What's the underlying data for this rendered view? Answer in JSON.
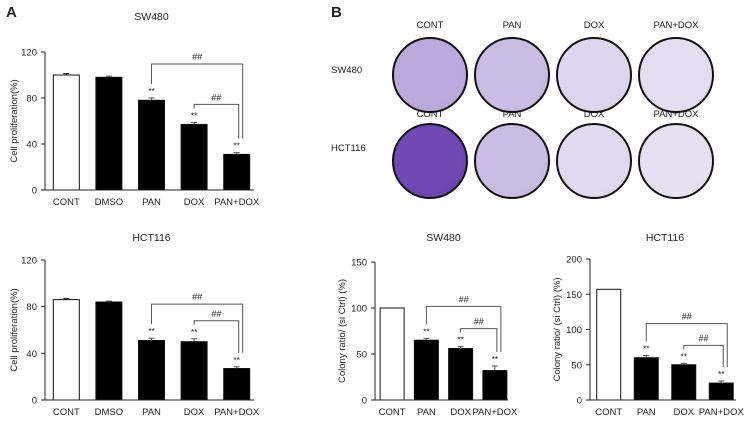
{
  "panel_labels": {
    "a": "A",
    "b": "B"
  },
  "colony_plates": {
    "columns": [
      "CONT",
      "PAN",
      "DOX",
      "PAN+DOX"
    ],
    "second_row_columns": [
      "CONT",
      "PAN",
      "DOX",
      "PAN+DOX"
    ],
    "rows": [
      "SW480",
      "HCT116"
    ],
    "stain_intensity": [
      [
        0.45,
        0.35,
        0.22,
        0.18
      ],
      [
        0.95,
        0.35,
        0.2,
        0.16
      ]
    ],
    "stain_color": "#6a3fb0"
  },
  "colors": {
    "control_fill": "#ffffff",
    "treated_fill": "#000000",
    "bracket": "#555555",
    "axis": "#222222"
  },
  "chart_data": [
    {
      "type": "bar",
      "title": "SW480",
      "ylabel": "Cell proliferation(%)",
      "xlabel": "",
      "ylim": [
        0,
        120
      ],
      "yticks": [
        0,
        40,
        80,
        120
      ],
      "yticklabels": [
        "0",
        "40",
        "80",
        "120"
      ],
      "categories": [
        "CONT",
        "DMSO",
        "PAN",
        "DOX",
        "PAN+DOX"
      ],
      "values": [
        100,
        98,
        78,
        57,
        31
      ],
      "errors": [
        1.2,
        1,
        2,
        1.8,
        1.5
      ],
      "fills": [
        "white",
        "black",
        "black",
        "black",
        "black"
      ],
      "significance": [
        "",
        "",
        "**",
        "**",
        "**"
      ],
      "brackets": [
        {
          "from": 2,
          "to": 4,
          "label": "##"
        },
        {
          "from": 3,
          "to": 4,
          "label": "##"
        }
      ]
    },
    {
      "type": "bar",
      "title": "HCT116",
      "ylabel": "Cell proliferation(%)",
      "xlabel": "",
      "ylim": [
        0,
        120
      ],
      "yticks": [
        0,
        40,
        80,
        120
      ],
      "yticklabels": [
        "0",
        "40",
        "80",
        "120"
      ],
      "categories": [
        "CONT",
        "DMSO",
        "PAN",
        "DOX",
        "PAN+DOX"
      ],
      "values": [
        86,
        84,
        51,
        50,
        27
      ],
      "errors": [
        1,
        0.8,
        2,
        2.5,
        1.5
      ],
      "fills": [
        "white",
        "black",
        "black",
        "black",
        "black"
      ],
      "significance": [
        "",
        "",
        "**",
        "**",
        "**"
      ],
      "brackets": [
        {
          "from": 2,
          "to": 4,
          "label": "##"
        },
        {
          "from": 3,
          "to": 4,
          "label": "##"
        }
      ]
    },
    {
      "type": "bar",
      "title": "SW480",
      "ylabel": "Colony ratio/ (si Ctrl) (%)",
      "xlabel": "",
      "ylim": [
        0,
        150
      ],
      "yticks": [
        0,
        50,
        100,
        150
      ],
      "yticklabels": [
        "0",
        "50",
        "100",
        "150"
      ],
      "categories": [
        "CONT",
        "PAN",
        "DOX",
        "PAN+DOX"
      ],
      "values": [
        100,
        65,
        56,
        32
      ],
      "errors": [
        0,
        2,
        2,
        5
      ],
      "fills": [
        "white",
        "black",
        "black",
        "black"
      ],
      "significance": [
        "",
        "**",
        "**",
        "**"
      ],
      "brackets": [
        {
          "from": 1,
          "to": 3,
          "label": "##"
        },
        {
          "from": 2,
          "to": 3,
          "label": "##"
        }
      ]
    },
    {
      "type": "bar",
      "title": "HCT116",
      "ylabel": "Colony ratio/ (si Ctrl) (%)",
      "xlabel": "",
      "ylim": [
        0,
        200
      ],
      "yticks": [
        0,
        50,
        100,
        150,
        200
      ],
      "yticklabels": [
        "0",
        "50",
        "100",
        "150",
        "200"
      ],
      "categories": [
        "CONT",
        "PAN",
        "DOX",
        "PAN+DOX"
      ],
      "values": [
        157,
        60,
        50,
        24
      ],
      "errors": [
        0,
        3,
        2,
        3
      ],
      "fills": [
        "white",
        "black",
        "black",
        "black"
      ],
      "significance": [
        "",
        "**",
        "**",
        "**"
      ],
      "brackets": [
        {
          "from": 1,
          "to": 3,
          "label": "##"
        },
        {
          "from": 2,
          "to": 3,
          "label": "##"
        }
      ]
    }
  ]
}
